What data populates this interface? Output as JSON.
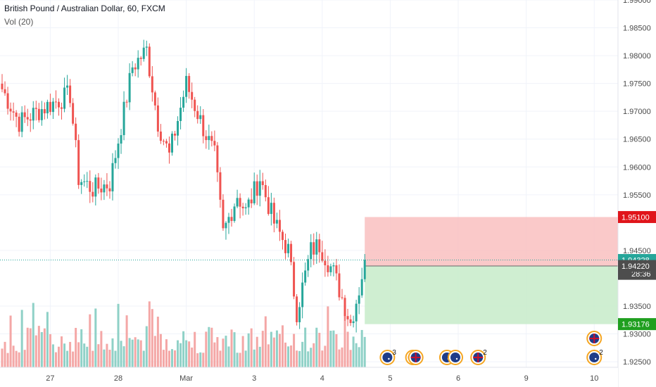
{
  "header": {
    "symbol_line": "British Pound / Australian Dollar, 60, FXCM",
    "volume_line": "Vol (20)"
  },
  "colors": {
    "up": "#26a69a",
    "down": "#ef5350",
    "up_volume": "#8fd1c7",
    "down_volume": "#f4a7a6",
    "stop_zone": "#f9c0c0",
    "target_zone": "#c7ebc9",
    "current_price_tag": "#26a69a",
    "stop_tag": "#e0141a",
    "target_tag": "#1f9f1f",
    "countdown_tag": "#4d4d4d"
  },
  "chart_data": {
    "type": "candlestick",
    "timeframe": "60",
    "ylim": [
      1.924,
      1.99
    ],
    "y_ticks": [
      {
        "value": 1.99,
        "label": "1.99000"
      },
      {
        "value": 1.985,
        "label": "1.98500"
      },
      {
        "value": 1.98,
        "label": "1.98000"
      },
      {
        "value": 1.975,
        "label": "1.97500"
      },
      {
        "value": 1.97,
        "label": "1.97000"
      },
      {
        "value": 1.965,
        "label": "1.96500"
      },
      {
        "value": 1.96,
        "label": "1.96000"
      },
      {
        "value": 1.955,
        "label": "1.95500"
      },
      {
        "value": 1.945,
        "label": "1.94500"
      },
      {
        "value": 1.935,
        "label": "1.93500"
      },
      {
        "value": 1.93,
        "label": "1.93000"
      },
      {
        "value": 1.925,
        "label": "1.92500"
      }
    ],
    "x_ticks": [
      {
        "bar": 17,
        "label": "27"
      },
      {
        "bar": 41,
        "label": "28"
      },
      {
        "bar": 65,
        "label": "Mar"
      },
      {
        "bar": 89,
        "label": "3"
      },
      {
        "bar": 113,
        "label": "4"
      },
      {
        "bar": 137,
        "label": "5"
      },
      {
        "bar": 161,
        "label": "6"
      },
      {
        "bar": 185,
        "label": "9"
      },
      {
        "bar": 209,
        "label": "10"
      }
    ],
    "key_price_points": [
      {
        "bar": 0,
        "price": 1.974
      },
      {
        "bar": 6,
        "price": 1.968
      },
      {
        "bar": 16,
        "price": 1.971
      },
      {
        "bar": 24,
        "price": 1.973
      },
      {
        "bar": 27,
        "price": 1.958
      },
      {
        "bar": 32,
        "price": 1.956
      },
      {
        "bar": 38,
        "price": 1.957
      },
      {
        "bar": 43,
        "price": 1.97
      },
      {
        "bar": 46,
        "price": 1.978
      },
      {
        "bar": 51,
        "price": 1.981
      },
      {
        "bar": 55,
        "price": 1.968
      },
      {
        "bar": 59,
        "price": 1.962
      },
      {
        "bar": 65,
        "price": 1.975
      },
      {
        "bar": 71,
        "price": 1.967
      },
      {
        "bar": 75,
        "price": 1.962
      },
      {
        "bar": 78,
        "price": 1.948
      },
      {
        "bar": 83,
        "price": 1.955
      },
      {
        "bar": 86,
        "price": 1.952
      },
      {
        "bar": 91,
        "price": 1.958
      },
      {
        "bar": 96,
        "price": 1.95
      },
      {
        "bar": 101,
        "price": 1.945
      },
      {
        "bar": 104,
        "price": 1.934
      },
      {
        "bar": 109,
        "price": 1.945
      },
      {
        "bar": 112,
        "price": 1.946
      },
      {
        "bar": 117,
        "price": 1.941
      },
      {
        "bar": 123,
        "price": 1.932
      },
      {
        "bar": 126,
        "price": 1.938
      },
      {
        "bar": 128,
        "price": 1.9433
      }
    ],
    "position": {
      "entry": 1.9422,
      "stop": 1.951,
      "target": 1.93176,
      "start_bar": 128,
      "end_bar": 220
    },
    "current_price": 1.94328,
    "price_tags": [
      {
        "value": 1.951,
        "label": "1.95100",
        "color_key": "stop_tag"
      },
      {
        "value": 1.94328,
        "label": "1.94328",
        "color_key": "current_price_tag"
      },
      {
        "value": 1.9408,
        "label": "28:36",
        "color_key": "countdown_tag",
        "is_countdown": true
      },
      {
        "value": 1.9422,
        "label": "1.94220",
        "color_key": "countdown_tag"
      },
      {
        "value": 1.93176,
        "label": "1.93176",
        "color_key": "target_tag"
      }
    ],
    "events": [
      {
        "bar": 136,
        "flag": "au",
        "count": "3",
        "row": 0
      },
      {
        "bar": 145,
        "flag": "gb",
        "count": "",
        "row": 0
      },
      {
        "bar": 146,
        "flag": "gb",
        "count": "",
        "row": 0
      },
      {
        "bar": 157,
        "flag": "au",
        "count": "",
        "row": 0
      },
      {
        "bar": 160,
        "flag": "au",
        "count": "",
        "row": 0
      },
      {
        "bar": 168,
        "flag": "gb",
        "count": "2",
        "row": 0
      },
      {
        "bar": 209,
        "flag": "gb",
        "count": "",
        "row": 1
      },
      {
        "bar": 209,
        "flag": "au",
        "count": "2",
        "row": 0
      }
    ]
  }
}
